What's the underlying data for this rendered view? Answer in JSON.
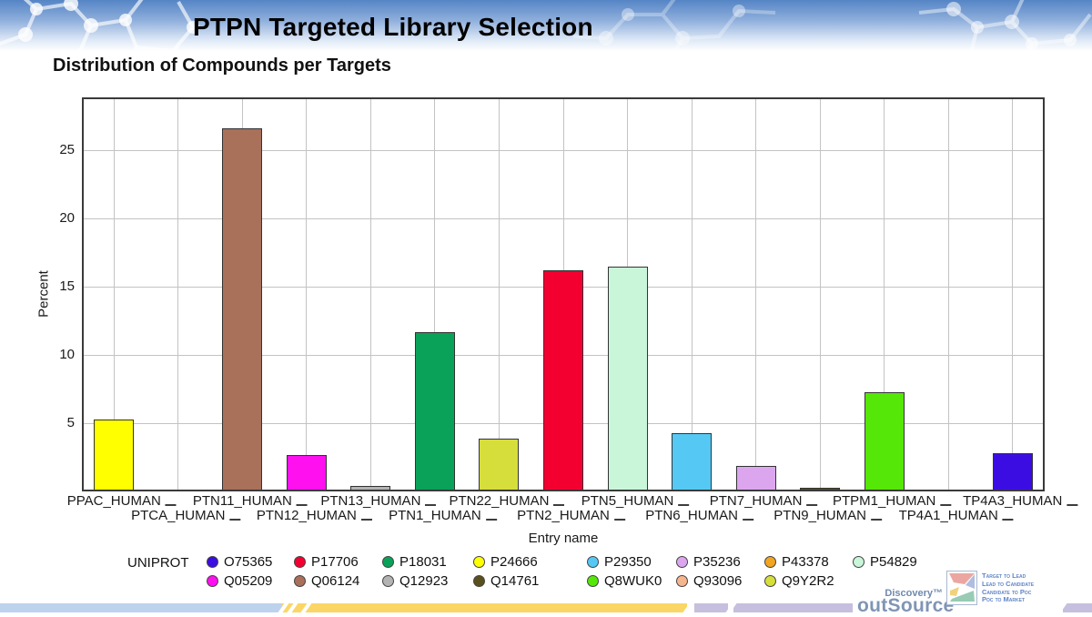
{
  "header": {
    "title": "PTPN Targeted Library Selection"
  },
  "chart_data": {
    "type": "bar",
    "title": "Distribution of Compounds per Targets",
    "xlabel": "Entry name",
    "ylabel": "Percent",
    "ylim": [
      0,
      28.9
    ],
    "yticks": [
      5,
      10,
      15,
      20,
      25
    ],
    "grid": true,
    "legend_title": "UNIPROT",
    "legend_position": "bottom",
    "categories": [
      "PPAC_HUMAN",
      "PTCA_HUMAN",
      "PTN11_HUMAN",
      "PTN12_HUMAN",
      "PTN13_HUMAN",
      "PTN1_HUMAN",
      "PTN22_HUMAN",
      "PTN2_HUMAN",
      "PTN5_HUMAN",
      "PTN6_HUMAN",
      "PTN7_HUMAN",
      "PTN9_HUMAN",
      "PTPM1_HUMAN",
      "TP4A1_HUMAN",
      "TP4A3_HUMAN"
    ],
    "values": [
      5.3,
      0.1,
      26.6,
      2.7,
      0.4,
      11.7,
      3.9,
      16.2,
      16.5,
      4.3,
      1.9,
      0.3,
      7.3,
      0,
      2.8
    ],
    "bar_uniprot": [
      "P24666",
      "Q93096",
      "Q06124",
      "Q05209",
      "Q12923",
      "P18031",
      "Q9Y2R2",
      "P17706",
      "P54829",
      "P29350",
      "P35236",
      "Q14761",
      "Q8WUK0",
      "P43378",
      "O75365"
    ],
    "bar_colors": [
      "#ffff00",
      "#f6b68d",
      "#a9705a",
      "#ff10ee",
      "#b3b3b3",
      "#0aa159",
      "#d6de3b",
      "#f30031",
      "#c9f6d9",
      "#55c9f4",
      "#dca6ef",
      "#59501d",
      "#55e707",
      "#f2a51f",
      "#3c0de2"
    ]
  },
  "legend": {
    "label": "UNIPROT",
    "items": [
      {
        "label": "O75365",
        "color": "#3c0de2"
      },
      {
        "label": "P17706",
        "color": "#f30031"
      },
      {
        "label": "P18031",
        "color": "#0aa159"
      },
      {
        "label": "P24666",
        "color": "#ffff00"
      },
      {
        "label": "P29350",
        "color": "#55c9f4"
      },
      {
        "label": "P35236",
        "color": "#dca6ef"
      },
      {
        "label": "P43378",
        "color": "#f2a51f"
      },
      {
        "label": "P54829",
        "color": "#c9f6d9"
      },
      {
        "label": "Q05209",
        "color": "#ff10ee"
      },
      {
        "label": "Q06124",
        "color": "#a9705a"
      },
      {
        "label": "Q12923",
        "color": "#b3b3b3"
      },
      {
        "label": "Q14761",
        "color": "#59501d"
      },
      {
        "label": "Q8WUK0",
        "color": "#55e707"
      },
      {
        "label": "Q93096",
        "color": "#f6b68d"
      },
      {
        "label": "Q9Y2R2",
        "color": "#d6de3b"
      }
    ]
  },
  "footer": {
    "brand_top": "Discovery™",
    "brand_main": "outSource",
    "taglines": [
      "Target to Lead",
      "Lead to Candidate",
      "Candidate to Poc",
      "Poc to Market"
    ]
  }
}
